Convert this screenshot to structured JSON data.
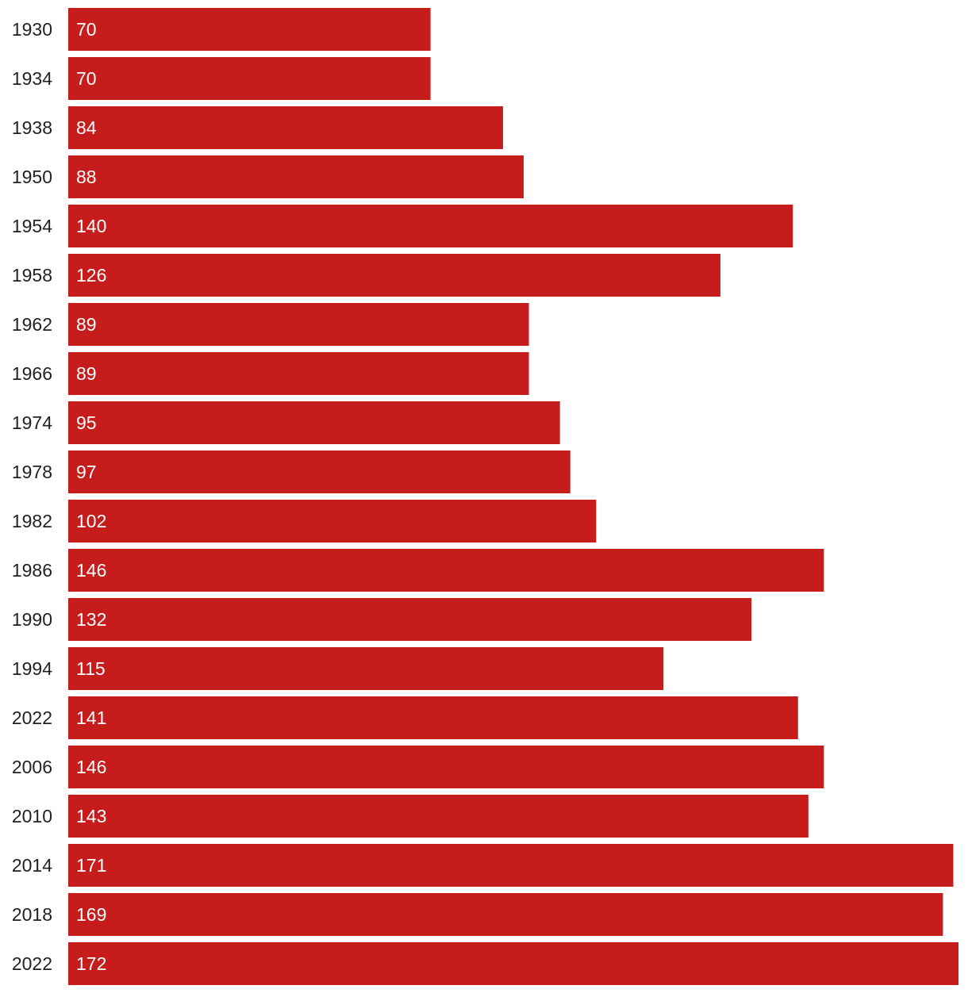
{
  "chart_data": {
    "type": "bar",
    "orientation": "horizontal",
    "categories": [
      "1930",
      "1934",
      "1938",
      "1950",
      "1954",
      "1958",
      "1962",
      "1966",
      "1974",
      "1978",
      "1982",
      "1986",
      "1990",
      "1994",
      "2022",
      "2006",
      "2010",
      "2014",
      "2018",
      "2022"
    ],
    "values": [
      70,
      70,
      84,
      88,
      140,
      126,
      89,
      89,
      95,
      97,
      102,
      146,
      132,
      115,
      141,
      146,
      143,
      171,
      169,
      172
    ],
    "title": "",
    "xlabel": "",
    "ylabel": "",
    "xlim": [
      0,
      172
    ],
    "grid": false,
    "legend": "none",
    "data_labels": "inside-start",
    "bar_color": "#c71c1c",
    "label_color": "#ffffff"
  }
}
